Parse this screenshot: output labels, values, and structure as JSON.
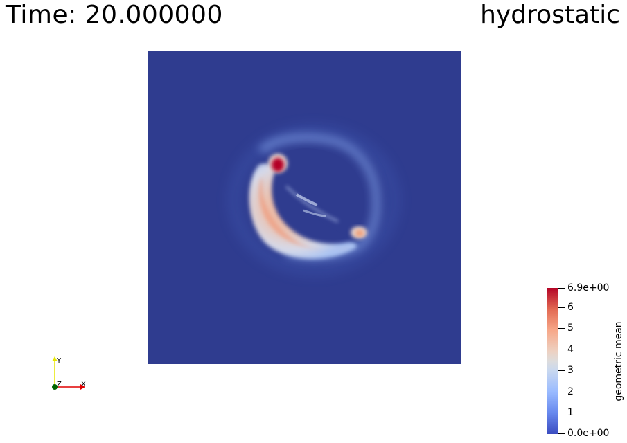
{
  "time_text": "Time: 20.000000",
  "view_title": "hydrostatic",
  "colorbar": {
    "title": "geometric mean",
    "max_label": "6.9e+00",
    "min_label": "0.0e+00",
    "min_value": 0,
    "max_value": 6.9,
    "ticks": [
      {
        "value": 6.9,
        "label": "6.9e+00"
      },
      {
        "value": 6,
        "label": "6"
      },
      {
        "value": 5,
        "label": "5"
      },
      {
        "value": 4,
        "label": "4"
      },
      {
        "value": 3,
        "label": "3"
      },
      {
        "value": 2,
        "label": "2"
      },
      {
        "value": 1,
        "label": "1"
      },
      {
        "value": 0,
        "label": "0.0e+00"
      }
    ],
    "colormap": "cool-to-warm",
    "low_color": "#3b4cc0",
    "high_color": "#b40426"
  },
  "orientation_axes": {
    "x_label": "X",
    "y_label": "Y",
    "z_label": "Z",
    "x_color": "#e00000",
    "y_color": "#e6e600",
    "z_color": "#006400"
  },
  "background_field_color": "#2f3c8f"
}
